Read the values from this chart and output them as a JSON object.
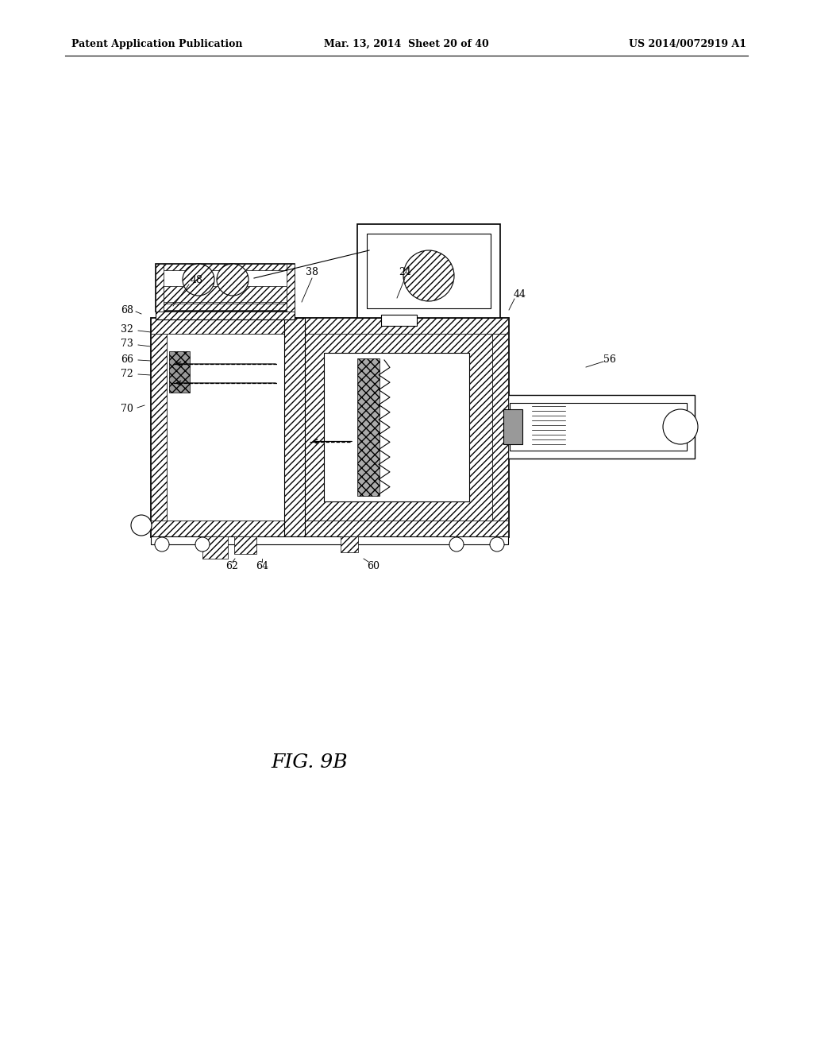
{
  "bg_color": "#ffffff",
  "header_left": "Patent Application Publication",
  "header_mid": "Mar. 13, 2014  Sheet 20 of 40",
  "header_right": "US 2014/0072919 A1",
  "fig_label": "FIG. 9B",
  "line_color": "#000000"
}
